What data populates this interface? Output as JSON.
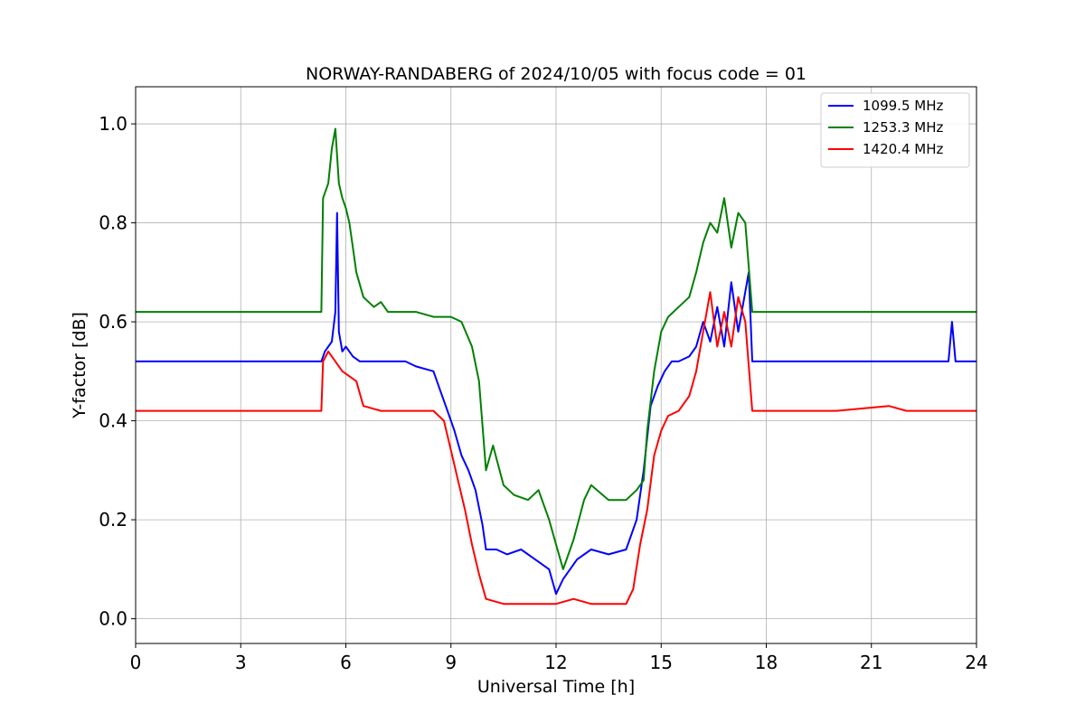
{
  "chart_data": {
    "type": "line",
    "title": "NORWAY-RANDABERG of 2024/10/05 with focus code = 01",
    "xlabel": "Universal Time [h]",
    "ylabel": "Y-factor [dB]",
    "xlim": [
      0,
      24
    ],
    "ylim": [
      -0.05,
      1.075
    ],
    "xticks": [
      0,
      3,
      6,
      9,
      12,
      15,
      18,
      21,
      24
    ],
    "yticks": [
      0.0,
      0.2,
      0.4,
      0.6,
      0.8,
      1.0
    ],
    "xtick_labels": [
      "0",
      "3",
      "6",
      "9",
      "12",
      "15",
      "18",
      "21",
      "24"
    ],
    "ytick_labels": [
      "0.0",
      "0.2",
      "0.4",
      "0.6",
      "0.8",
      "1.0"
    ],
    "grid": true,
    "legend": "top-right",
    "series": [
      {
        "name": "1099.5 MHz",
        "color": "#0000ff",
        "x": [
          0,
          2,
          5.3,
          5.4,
          5.6,
          5.7,
          5.75,
          5.8,
          5.9,
          6.0,
          6.2,
          6.4,
          6.6,
          7.0,
          7.4,
          7.7,
          8.0,
          8.5,
          8.7,
          8.9,
          9.1,
          9.3,
          9.5,
          9.7,
          9.9,
          10.0,
          10.3,
          10.6,
          11.0,
          11.4,
          11.8,
          12.0,
          12.2,
          12.4,
          12.6,
          13.0,
          13.5,
          14.0,
          14.3,
          14.5,
          14.7,
          14.9,
          15.1,
          15.3,
          15.5,
          15.8,
          16.0,
          16.2,
          16.4,
          16.6,
          16.8,
          17.0,
          17.2,
          17.5,
          17.6,
          18.0,
          20.0,
          22.0,
          23.2,
          23.3,
          23.4,
          24.0
        ],
        "y": [
          0.52,
          0.52,
          0.52,
          0.54,
          0.56,
          0.62,
          0.82,
          0.58,
          0.54,
          0.55,
          0.53,
          0.52,
          0.52,
          0.52,
          0.52,
          0.52,
          0.51,
          0.5,
          0.46,
          0.42,
          0.38,
          0.33,
          0.3,
          0.26,
          0.19,
          0.14,
          0.14,
          0.13,
          0.14,
          0.12,
          0.1,
          0.05,
          0.08,
          0.1,
          0.12,
          0.14,
          0.13,
          0.14,
          0.2,
          0.3,
          0.43,
          0.47,
          0.5,
          0.52,
          0.52,
          0.53,
          0.55,
          0.6,
          0.56,
          0.63,
          0.55,
          0.68,
          0.58,
          0.7,
          0.52,
          0.52,
          0.52,
          0.52,
          0.52,
          0.6,
          0.52,
          0.52
        ]
      },
      {
        "name": "1253.3 MHz",
        "color": "#008000",
        "x": [
          0,
          2,
          3.5,
          5.3,
          5.35,
          5.5,
          5.6,
          5.7,
          5.8,
          5.9,
          6.0,
          6.1,
          6.2,
          6.3,
          6.5,
          6.8,
          7.0,
          7.2,
          7.5,
          8.0,
          8.5,
          9.0,
          9.3,
          9.6,
          9.8,
          10.0,
          10.2,
          10.5,
          10.8,
          11.2,
          11.5,
          11.8,
          12.0,
          12.2,
          12.5,
          12.8,
          13.0,
          13.5,
          14.0,
          14.3,
          14.5,
          14.6,
          14.8,
          15.0,
          15.2,
          15.5,
          15.8,
          16.0,
          16.2,
          16.4,
          16.6,
          16.8,
          17.0,
          17.2,
          17.4,
          17.6,
          18.0,
          20.0,
          22.0,
          24.0
        ],
        "y": [
          0.62,
          0.62,
          0.62,
          0.62,
          0.85,
          0.88,
          0.95,
          0.99,
          0.88,
          0.85,
          0.83,
          0.8,
          0.75,
          0.7,
          0.65,
          0.63,
          0.64,
          0.62,
          0.62,
          0.62,
          0.61,
          0.61,
          0.6,
          0.55,
          0.48,
          0.3,
          0.35,
          0.27,
          0.25,
          0.24,
          0.26,
          0.2,
          0.15,
          0.1,
          0.16,
          0.24,
          0.27,
          0.24,
          0.24,
          0.26,
          0.28,
          0.38,
          0.5,
          0.58,
          0.61,
          0.63,
          0.65,
          0.7,
          0.76,
          0.8,
          0.78,
          0.85,
          0.75,
          0.82,
          0.8,
          0.62,
          0.62,
          0.62,
          0.62,
          0.62
        ]
      },
      {
        "name": "1420.4 MHz",
        "color": "#ff0000",
        "x": [
          0,
          2,
          5.3,
          5.35,
          5.5,
          5.7,
          5.9,
          6.1,
          6.3,
          6.5,
          7.0,
          7.5,
          8.0,
          8.5,
          8.8,
          9.0,
          9.2,
          9.4,
          9.6,
          9.8,
          10.0,
          10.5,
          11.0,
          11.5,
          12.0,
          12.5,
          13.0,
          13.5,
          14.0,
          14.2,
          14.4,
          14.6,
          14.8,
          15.0,
          15.2,
          15.5,
          15.8,
          16.0,
          16.2,
          16.4,
          16.6,
          16.8,
          17.0,
          17.2,
          17.4,
          17.6,
          18.0,
          20.0,
          21.5,
          22.0,
          24.0
        ],
        "y": [
          0.42,
          0.42,
          0.42,
          0.52,
          0.54,
          0.52,
          0.5,
          0.49,
          0.48,
          0.43,
          0.42,
          0.42,
          0.42,
          0.42,
          0.4,
          0.34,
          0.28,
          0.22,
          0.15,
          0.09,
          0.04,
          0.03,
          0.03,
          0.03,
          0.03,
          0.04,
          0.03,
          0.03,
          0.03,
          0.06,
          0.15,
          0.22,
          0.33,
          0.38,
          0.41,
          0.42,
          0.45,
          0.5,
          0.58,
          0.66,
          0.55,
          0.62,
          0.55,
          0.65,
          0.6,
          0.42,
          0.42,
          0.42,
          0.43,
          0.42,
          0.42
        ]
      }
    ]
  }
}
